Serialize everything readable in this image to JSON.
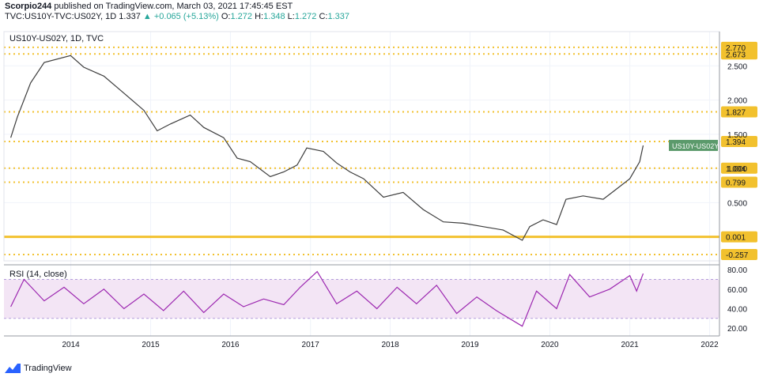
{
  "header": {
    "author": "Scorpio244",
    "published_text": "published on TradingView.com, March 03, 2021 17:45:45 EST",
    "symbol_line": "TVC:US10Y-TVC:US02Y, 1D",
    "last": "1.337",
    "change": "+0.065 (+5.13%)",
    "o_label": "O:",
    "o_value": "1.272",
    "h_label": "H:",
    "h_value": "1.348",
    "l_label": "L:",
    "l_value": "1.272",
    "c_label": "C:",
    "c_value": "1.337"
  },
  "chart_data": [
    {
      "type": "line",
      "legend": "US10Y-US02Y, 1D, TVC",
      "series": [
        {
          "name": "US10Y-US02Y",
          "x": [
            "2013-04-01",
            "2013-05-01",
            "2013-07-01",
            "2013-09-01",
            "2013-12-31",
            "2014-03-01",
            "2014-06-01",
            "2014-09-01",
            "2014-12-01",
            "2015-01-31",
            "2015-04-01",
            "2015-07-01",
            "2015-09-01",
            "2015-12-01",
            "2016-02-01",
            "2016-04-01",
            "2016-07-01",
            "2016-09-01",
            "2016-11-01",
            "2016-12-15",
            "2017-03-01",
            "2017-05-01",
            "2017-07-01",
            "2017-09-01",
            "2017-12-01",
            "2018-03-01",
            "2018-06-01",
            "2018-09-01",
            "2018-12-01",
            "2019-03-01",
            "2019-06-01",
            "2019-08-28",
            "2019-10-01",
            "2019-12-01",
            "2020-02-01",
            "2020-03-15",
            "2020-06-01",
            "2020-09-01",
            "2020-11-01",
            "2021-01-01",
            "2021-02-15",
            "2021-03-03"
          ],
          "y": [
            1.45,
            1.75,
            2.25,
            2.55,
            2.65,
            2.48,
            2.35,
            2.1,
            1.85,
            1.55,
            1.65,
            1.78,
            1.6,
            1.45,
            1.15,
            1.1,
            0.88,
            0.95,
            1.05,
            1.3,
            1.25,
            1.08,
            0.95,
            0.85,
            0.58,
            0.65,
            0.4,
            0.22,
            0.2,
            0.15,
            0.1,
            -0.05,
            0.15,
            0.25,
            0.18,
            0.55,
            0.6,
            0.55,
            0.7,
            0.85,
            1.1,
            1.337
          ]
        }
      ],
      "price_labels": [
        {
          "label": "2.770",
          "value": 2.77,
          "kind": "level"
        },
        {
          "label": "2.673",
          "value": 2.673,
          "kind": "level"
        },
        {
          "label": "1.827",
          "value": 1.827,
          "kind": "level"
        },
        {
          "label": "1.394",
          "value": 1.394,
          "kind": "level"
        },
        {
          "label": "1.004",
          "value": 1.004,
          "kind": "level"
        },
        {
          "label": "0.799",
          "value": 0.799,
          "kind": "level"
        },
        {
          "label": "0.001",
          "value": 0.001,
          "kind": "level"
        },
        {
          "label": "-0.257",
          "value": -0.257,
          "kind": "level"
        }
      ],
      "symbol_tag": "US10Y-US02Y",
      "y_ticks": [
        "2.500",
        "2.000",
        "1.500",
        "1.000",
        "0.500"
      ],
      "y_tick_values": [
        2.5,
        2.0,
        1.5,
        1.0,
        0.5
      ],
      "ylim": [
        -0.35,
        3.0
      ],
      "colors": {
        "line": "#3d3d3d",
        "level": "#f2c12e",
        "tag_bg": "#5b9a6b"
      }
    },
    {
      "type": "line",
      "legend": "RSI (14, close)",
      "series": [
        {
          "name": "RSI",
          "x": [
            "2013-04-01",
            "2013-06-01",
            "2013-09-01",
            "2013-12-01",
            "2014-03-01",
            "2014-06-01",
            "2014-09-01",
            "2014-12-01",
            "2015-03-01",
            "2015-06-01",
            "2015-09-01",
            "2015-12-01",
            "2016-03-01",
            "2016-06-01",
            "2016-09-01",
            "2016-11-15",
            "2017-02-01",
            "2017-05-01",
            "2017-08-01",
            "2017-11-01",
            "2018-02-01",
            "2018-05-01",
            "2018-08-01",
            "2018-11-01",
            "2019-02-01",
            "2019-05-01",
            "2019-08-28",
            "2019-11-01",
            "2020-02-01",
            "2020-04-01",
            "2020-07-01",
            "2020-10-01",
            "2021-01-01",
            "2021-02-01",
            "2021-03-03"
          ],
          "y": [
            42,
            70,
            48,
            62,
            45,
            60,
            40,
            55,
            38,
            58,
            36,
            55,
            42,
            50,
            44,
            62,
            78,
            45,
            58,
            40,
            62,
            45,
            64,
            35,
            52,
            38,
            22,
            58,
            40,
            75,
            52,
            60,
            74,
            58,
            76
          ]
        }
      ],
      "levels": [
        70,
        30
      ],
      "y_ticks": [
        "80.00",
        "60.00",
        "40.00",
        "20.00"
      ],
      "y_tick_values": [
        80,
        60,
        40,
        20
      ],
      "ylim": [
        12,
        85
      ],
      "colors": {
        "line": "#9c27b0",
        "band": "#f3e5f5"
      }
    }
  ],
  "x_axis": {
    "ticks": [
      "2014",
      "2015",
      "2016",
      "2017",
      "2018",
      "2019",
      "2020",
      "2021",
      "2022"
    ],
    "tick_dates": [
      "2014-01-01",
      "2015-01-01",
      "2016-01-01",
      "2017-01-01",
      "2018-01-01",
      "2019-01-01",
      "2020-01-01",
      "2021-01-01",
      "2022-01-01"
    ],
    "range": [
      "2013-03-01",
      "2022-02-15"
    ]
  },
  "footer": {
    "brand": "TradingView"
  }
}
